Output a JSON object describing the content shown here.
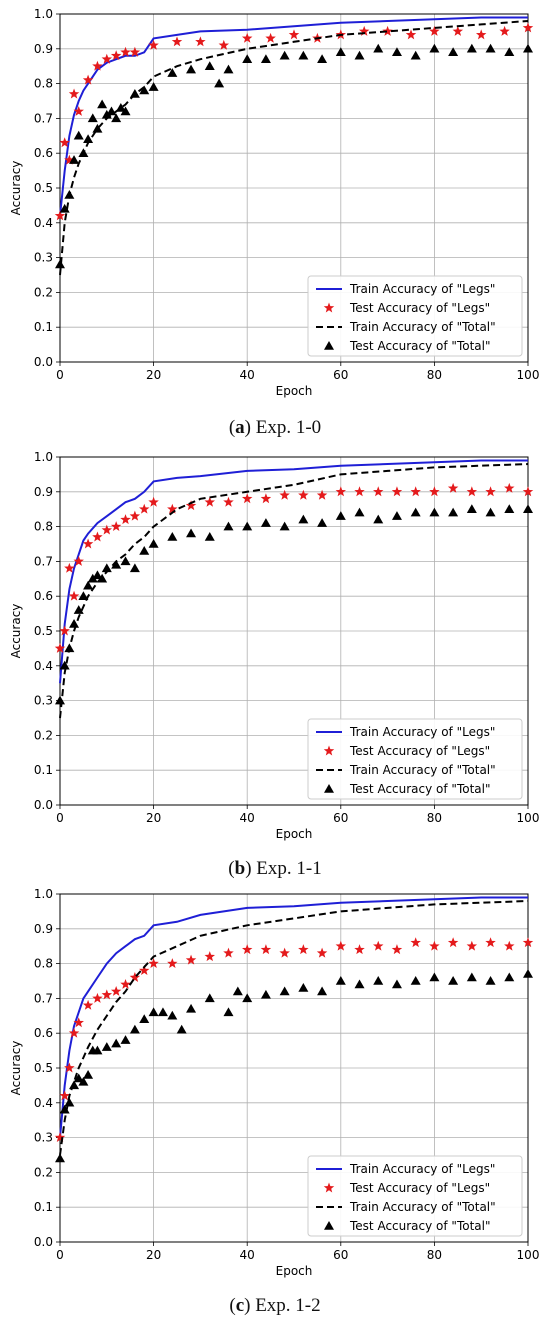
{
  "chart_data": [
    {
      "type": "line",
      "caption_letter": "a",
      "caption_text": "Exp. 1-0",
      "xlabel": "Epoch",
      "ylabel": "Accuracy",
      "xlim": [
        0,
        100
      ],
      "ylim": [
        0.0,
        1.0
      ],
      "xticks": [
        "0",
        "20",
        "40",
        "60",
        "80",
        "100"
      ],
      "yticks": [
        "0.0",
        "0.1",
        "0.2",
        "0.3",
        "0.4",
        "0.5",
        "0.6",
        "0.7",
        "0.8",
        "0.9",
        "1.0"
      ],
      "grid": true,
      "legend_position": "lower-right",
      "series": [
        {
          "name": "Train Accuracy of \"Legs\"",
          "style": "solid-line",
          "color": "#1f1fd6",
          "x": [
            0,
            1,
            2,
            3,
            4,
            5,
            6,
            7,
            8,
            10,
            12,
            14,
            16,
            18,
            20,
            25,
            30,
            40,
            50,
            60,
            70,
            80,
            90,
            100
          ],
          "y": [
            0.42,
            0.55,
            0.65,
            0.71,
            0.75,
            0.78,
            0.8,
            0.82,
            0.84,
            0.86,
            0.87,
            0.88,
            0.88,
            0.89,
            0.93,
            0.94,
            0.95,
            0.955,
            0.965,
            0.975,
            0.98,
            0.985,
            0.99,
            0.99
          ]
        },
        {
          "name": "Test Accuracy of \"Legs\"",
          "style": "star",
          "color": "#e41a1c",
          "x": [
            0,
            1,
            2,
            3,
            4,
            6,
            8,
            10,
            12,
            14,
            16,
            20,
            25,
            30,
            35,
            40,
            45,
            50,
            55,
            60,
            65,
            70,
            75,
            80,
            85,
            90,
            95,
            100
          ],
          "y": [
            0.42,
            0.63,
            0.58,
            0.77,
            0.72,
            0.81,
            0.85,
            0.87,
            0.88,
            0.89,
            0.89,
            0.91,
            0.92,
            0.92,
            0.91,
            0.93,
            0.93,
            0.94,
            0.93,
            0.94,
            0.95,
            0.95,
            0.94,
            0.95,
            0.95,
            0.94,
            0.95,
            0.96
          ]
        },
        {
          "name": "Train Accuracy of \"Total\"",
          "style": "dashed-line",
          "color": "#000000",
          "x": [
            0,
            1,
            2,
            3,
            4,
            5,
            6,
            8,
            10,
            12,
            14,
            16,
            18,
            20,
            25,
            30,
            40,
            50,
            60,
            70,
            80,
            90,
            100
          ],
          "y": [
            0.25,
            0.4,
            0.48,
            0.53,
            0.57,
            0.6,
            0.63,
            0.67,
            0.7,
            0.72,
            0.74,
            0.77,
            0.79,
            0.82,
            0.85,
            0.87,
            0.9,
            0.92,
            0.94,
            0.95,
            0.96,
            0.97,
            0.98
          ]
        },
        {
          "name": "Test Accuracy of \"Total\"",
          "style": "triangle",
          "color": "#000000",
          "x": [
            0,
            1,
            2,
            3,
            4,
            5,
            6,
            7,
            8,
            9,
            10,
            11,
            12,
            13,
            14,
            16,
            18,
            20,
            24,
            28,
            32,
            34,
            36,
            40,
            44,
            48,
            52,
            56,
            60,
            64,
            68,
            72,
            76,
            80,
            84,
            88,
            92,
            96,
            100
          ],
          "y": [
            0.28,
            0.44,
            0.48,
            0.58,
            0.65,
            0.6,
            0.64,
            0.7,
            0.67,
            0.74,
            0.71,
            0.72,
            0.7,
            0.73,
            0.72,
            0.77,
            0.78,
            0.79,
            0.83,
            0.84,
            0.85,
            0.8,
            0.84,
            0.87,
            0.87,
            0.88,
            0.88,
            0.87,
            0.89,
            0.88,
            0.9,
            0.89,
            0.88,
            0.9,
            0.89,
            0.9,
            0.9,
            0.89,
            0.9
          ]
        }
      ]
    },
    {
      "type": "line",
      "caption_letter": "b",
      "caption_text": "Exp. 1-1",
      "xlabel": "Epoch",
      "ylabel": "Accuracy",
      "xlim": [
        0,
        100
      ],
      "ylim": [
        0.0,
        1.0
      ],
      "xticks": [
        "0",
        "20",
        "40",
        "60",
        "80",
        "100"
      ],
      "yticks": [
        "0.0",
        "0.1",
        "0.2",
        "0.3",
        "0.4",
        "0.5",
        "0.6",
        "0.7",
        "0.8",
        "0.9",
        "1.0"
      ],
      "grid": true,
      "legend_position": "lower-right",
      "series": [
        {
          "name": "Train Accuracy of \"Legs\"",
          "style": "solid-line",
          "color": "#1f1fd6",
          "x": [
            0,
            1,
            2,
            3,
            4,
            5,
            6,
            8,
            10,
            12,
            14,
            16,
            18,
            20,
            25,
            30,
            40,
            50,
            60,
            70,
            80,
            90,
            100
          ],
          "y": [
            0.35,
            0.52,
            0.62,
            0.68,
            0.72,
            0.76,
            0.78,
            0.81,
            0.83,
            0.85,
            0.87,
            0.88,
            0.9,
            0.93,
            0.94,
            0.945,
            0.96,
            0.965,
            0.975,
            0.98,
            0.985,
            0.99,
            0.99
          ]
        },
        {
          "name": "Test Accuracy of \"Legs\"",
          "style": "star",
          "color": "#e41a1c",
          "x": [
            0,
            1,
            2,
            3,
            4,
            6,
            8,
            10,
            12,
            14,
            16,
            18,
            20,
            24,
            28,
            32,
            36,
            40,
            44,
            48,
            52,
            56,
            60,
            64,
            68,
            72,
            76,
            80,
            84,
            88,
            92,
            96,
            100
          ],
          "y": [
            0.45,
            0.5,
            0.68,
            0.6,
            0.7,
            0.75,
            0.77,
            0.79,
            0.8,
            0.82,
            0.83,
            0.85,
            0.87,
            0.85,
            0.86,
            0.87,
            0.87,
            0.88,
            0.88,
            0.89,
            0.89,
            0.89,
            0.9,
            0.9,
            0.9,
            0.9,
            0.9,
            0.9,
            0.91,
            0.9,
            0.9,
            0.91,
            0.9
          ]
        },
        {
          "name": "Train Accuracy of \"Total\"",
          "style": "dashed-line",
          "color": "#000000",
          "x": [
            0,
            1,
            2,
            3,
            4,
            5,
            6,
            8,
            10,
            12,
            14,
            16,
            18,
            20,
            25,
            30,
            40,
            50,
            60,
            70,
            80,
            90,
            100
          ],
          "y": [
            0.25,
            0.38,
            0.45,
            0.5,
            0.54,
            0.57,
            0.6,
            0.64,
            0.67,
            0.7,
            0.72,
            0.75,
            0.77,
            0.8,
            0.85,
            0.88,
            0.9,
            0.92,
            0.95,
            0.96,
            0.97,
            0.975,
            0.98
          ]
        },
        {
          "name": "Test Accuracy of \"Total\"",
          "style": "triangle",
          "color": "#000000",
          "x": [
            0,
            1,
            2,
            3,
            4,
            5,
            6,
            7,
            8,
            9,
            10,
            12,
            14,
            16,
            18,
            20,
            24,
            28,
            32,
            36,
            40,
            44,
            48,
            52,
            56,
            60,
            64,
            68,
            72,
            76,
            80,
            84,
            88,
            92,
            96,
            100
          ],
          "y": [
            0.3,
            0.4,
            0.45,
            0.52,
            0.56,
            0.6,
            0.63,
            0.65,
            0.66,
            0.65,
            0.68,
            0.69,
            0.7,
            0.68,
            0.73,
            0.75,
            0.77,
            0.78,
            0.77,
            0.8,
            0.8,
            0.81,
            0.8,
            0.82,
            0.81,
            0.83,
            0.84,
            0.82,
            0.83,
            0.84,
            0.84,
            0.84,
            0.85,
            0.84,
            0.85,
            0.85
          ]
        }
      ]
    },
    {
      "type": "line",
      "caption_letter": "c",
      "caption_text": "Exp. 1-2",
      "xlabel": "Epoch",
      "ylabel": "Accuracy",
      "xlim": [
        0,
        100
      ],
      "ylim": [
        0.0,
        1.0
      ],
      "xticks": [
        "0",
        "20",
        "40",
        "60",
        "80",
        "100"
      ],
      "yticks": [
        "0.0",
        "0.1",
        "0.2",
        "0.3",
        "0.4",
        "0.5",
        "0.6",
        "0.7",
        "0.8",
        "0.9",
        "1.0"
      ],
      "grid": true,
      "legend_position": "lower-right",
      "series": [
        {
          "name": "Train Accuracy of \"Legs\"",
          "style": "solid-line",
          "color": "#1f1fd6",
          "x": [
            0,
            1,
            2,
            3,
            4,
            5,
            6,
            8,
            10,
            12,
            14,
            16,
            18,
            20,
            25,
            30,
            40,
            50,
            60,
            70,
            80,
            90,
            100
          ],
          "y": [
            0.3,
            0.45,
            0.55,
            0.62,
            0.66,
            0.7,
            0.72,
            0.76,
            0.8,
            0.83,
            0.85,
            0.87,
            0.88,
            0.91,
            0.92,
            0.94,
            0.96,
            0.965,
            0.975,
            0.98,
            0.985,
            0.99,
            0.99
          ]
        },
        {
          "name": "Test Accuracy of \"Legs\"",
          "style": "star",
          "color": "#e41a1c",
          "x": [
            0,
            1,
            2,
            3,
            4,
            6,
            8,
            10,
            12,
            14,
            16,
            18,
            20,
            24,
            28,
            32,
            36,
            40,
            44,
            48,
            52,
            56,
            60,
            64,
            68,
            72,
            76,
            80,
            84,
            88,
            92,
            96,
            100
          ],
          "y": [
            0.3,
            0.42,
            0.5,
            0.6,
            0.63,
            0.68,
            0.7,
            0.71,
            0.72,
            0.74,
            0.76,
            0.78,
            0.8,
            0.8,
            0.81,
            0.82,
            0.83,
            0.84,
            0.84,
            0.83,
            0.84,
            0.83,
            0.85,
            0.84,
            0.85,
            0.84,
            0.86,
            0.85,
            0.86,
            0.85,
            0.86,
            0.85,
            0.86
          ]
        },
        {
          "name": "Train Accuracy of \"Total\"",
          "style": "dashed-line",
          "color": "#000000",
          "x": [
            0,
            1,
            2,
            3,
            4,
            5,
            6,
            8,
            10,
            12,
            14,
            16,
            18,
            20,
            25,
            30,
            40,
            50,
            60,
            70,
            80,
            90,
            100
          ],
          "y": [
            0.25,
            0.35,
            0.42,
            0.46,
            0.5,
            0.53,
            0.56,
            0.61,
            0.65,
            0.69,
            0.72,
            0.76,
            0.79,
            0.82,
            0.85,
            0.88,
            0.91,
            0.93,
            0.95,
            0.96,
            0.97,
            0.975,
            0.98
          ]
        },
        {
          "name": "Test Accuracy of \"Total\"",
          "style": "triangle",
          "color": "#000000",
          "x": [
            0,
            1,
            2,
            3,
            4,
            5,
            6,
            7,
            8,
            10,
            12,
            14,
            16,
            18,
            20,
            22,
            24,
            26,
            28,
            32,
            36,
            38,
            40,
            44,
            48,
            52,
            56,
            60,
            64,
            68,
            72,
            76,
            80,
            84,
            88,
            92,
            96,
            100
          ],
          "y": [
            0.24,
            0.38,
            0.4,
            0.45,
            0.47,
            0.46,
            0.48,
            0.55,
            0.55,
            0.56,
            0.57,
            0.58,
            0.61,
            0.64,
            0.66,
            0.66,
            0.65,
            0.61,
            0.67,
            0.7,
            0.66,
            0.72,
            0.7,
            0.71,
            0.72,
            0.73,
            0.72,
            0.75,
            0.74,
            0.75,
            0.74,
            0.75,
            0.76,
            0.75,
            0.76,
            0.75,
            0.76,
            0.77
          ]
        }
      ]
    }
  ]
}
